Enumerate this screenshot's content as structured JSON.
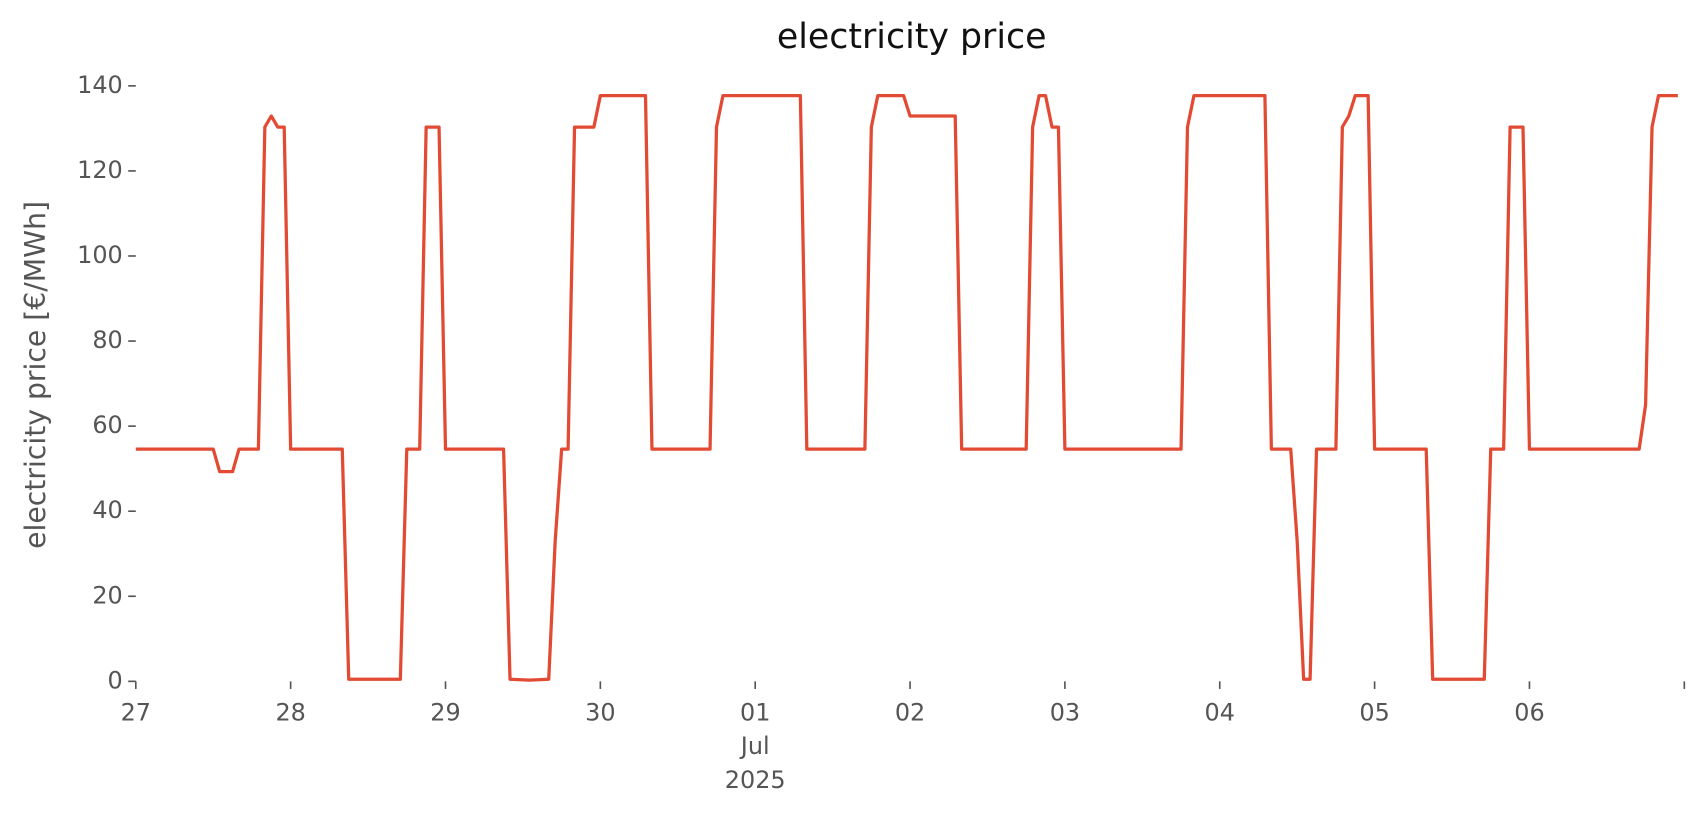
{
  "chart_data": {
    "type": "line",
    "title": "electricity price",
    "y_label": "electricity price [€/MWh]",
    "color": "#E24A33",
    "x": [
      "2025-06-27T00:00",
      "2025-06-27T12:00",
      "2025-06-27T13:00",
      "2025-06-27T15:00",
      "2025-06-27T16:00",
      "2025-06-27T19:00",
      "2025-06-27T20:00",
      "2025-06-27T21:00",
      "2025-06-27T22:00",
      "2025-06-27T23:00",
      "2025-06-28T00:00",
      "2025-06-28T08:00",
      "2025-06-28T09:00",
      "2025-06-28T17:00",
      "2025-06-28T18:00",
      "2025-06-28T20:00",
      "2025-06-28T21:00",
      "2025-06-28T23:00",
      "2025-06-29T00:00",
      "2025-06-29T09:00",
      "2025-06-29T10:00",
      "2025-06-29T13:00",
      "2025-06-29T16:00",
      "2025-06-29T17:00",
      "2025-06-29T18:00",
      "2025-06-29T19:00",
      "2025-06-29T20:00",
      "2025-06-29T23:00",
      "2025-06-30T00:00",
      "2025-06-30T07:00",
      "2025-06-30T08:00",
      "2025-06-30T17:00",
      "2025-06-30T18:00",
      "2025-06-30T19:00",
      "2025-07-01T07:00",
      "2025-07-01T08:00",
      "2025-07-01T17:00",
      "2025-07-01T18:00",
      "2025-07-01T19:00",
      "2025-07-01T23:00",
      "2025-07-02T00:00",
      "2025-07-02T07:00",
      "2025-07-02T08:00",
      "2025-07-02T18:00",
      "2025-07-02T19:00",
      "2025-07-02T20:00",
      "2025-07-02T21:00",
      "2025-07-02T22:00",
      "2025-07-02T23:00",
      "2025-07-03T00:00",
      "2025-07-03T18:00",
      "2025-07-03T19:00",
      "2025-07-03T20:00",
      "2025-07-04T07:00",
      "2025-07-04T08:00",
      "2025-07-04T11:00",
      "2025-07-04T12:00",
      "2025-07-04T13:00",
      "2025-07-04T14:00",
      "2025-07-04T15:00",
      "2025-07-04T18:00",
      "2025-07-04T19:00",
      "2025-07-04T20:00",
      "2025-07-04T21:00",
      "2025-07-04T23:00",
      "2025-07-05T00:00",
      "2025-07-05T08:00",
      "2025-07-05T09:00",
      "2025-07-05T17:00",
      "2025-07-05T18:00",
      "2025-07-05T20:00",
      "2025-07-05T21:00",
      "2025-07-05T23:00",
      "2025-07-06T00:00",
      "2025-07-06T17:00",
      "2025-07-06T18:00",
      "2025-07-06T19:00",
      "2025-07-06T20:00",
      "2025-07-06T23:00"
    ],
    "values": [
      54.6,
      54.6,
      49.3,
      49.3,
      54.6,
      54.6,
      130.3,
      132.9,
      130.3,
      130.3,
      54.6,
      54.6,
      0.5,
      0.5,
      54.6,
      54.6,
      130.3,
      130.3,
      54.6,
      54.6,
      0.5,
      0.3,
      0.5,
      33,
      54.6,
      54.6,
      130.3,
      130.3,
      137.7,
      137.7,
      54.6,
      54.6,
      130.3,
      137.7,
      137.7,
      54.6,
      54.6,
      130.3,
      137.7,
      137.7,
      132.9,
      132.9,
      54.6,
      54.6,
      130.3,
      137.7,
      137.7,
      130.3,
      130.3,
      54.6,
      54.6,
      130.3,
      137.7,
      137.7,
      54.6,
      54.6,
      33,
      0.5,
      0.5,
      54.6,
      54.6,
      130.3,
      132.9,
      137.7,
      137.7,
      54.6,
      54.6,
      0.5,
      0.5,
      54.6,
      54.6,
      130.3,
      130.3,
      54.6,
      54.6,
      65,
      130.3,
      137.7,
      137.7
    ],
    "xlim": [
      "2025-06-27T00:00",
      "2025-07-07T00:00"
    ],
    "xticks": [
      {
        "value": "2025-06-27",
        "label": "27"
      },
      {
        "value": "2025-06-28",
        "label": "28"
      },
      {
        "value": "2025-06-29",
        "label": "29"
      },
      {
        "value": "2025-06-30",
        "label": "30"
      },
      {
        "value": "2025-07-01",
        "label": "01\nJul\n2025"
      },
      {
        "value": "2025-07-02",
        "label": "02"
      },
      {
        "value": "2025-07-03",
        "label": "03"
      },
      {
        "value": "2025-07-04",
        "label": "04"
      },
      {
        "value": "2025-07-05",
        "label": "05"
      },
      {
        "value": "2025-07-06",
        "label": "06"
      },
      {
        "value": "2025-07-07"
      }
    ],
    "ylim": [
      0,
      140
    ],
    "yticks": [
      0,
      20,
      40,
      60,
      80,
      100,
      120,
      140
    ],
    "grid": false
  }
}
